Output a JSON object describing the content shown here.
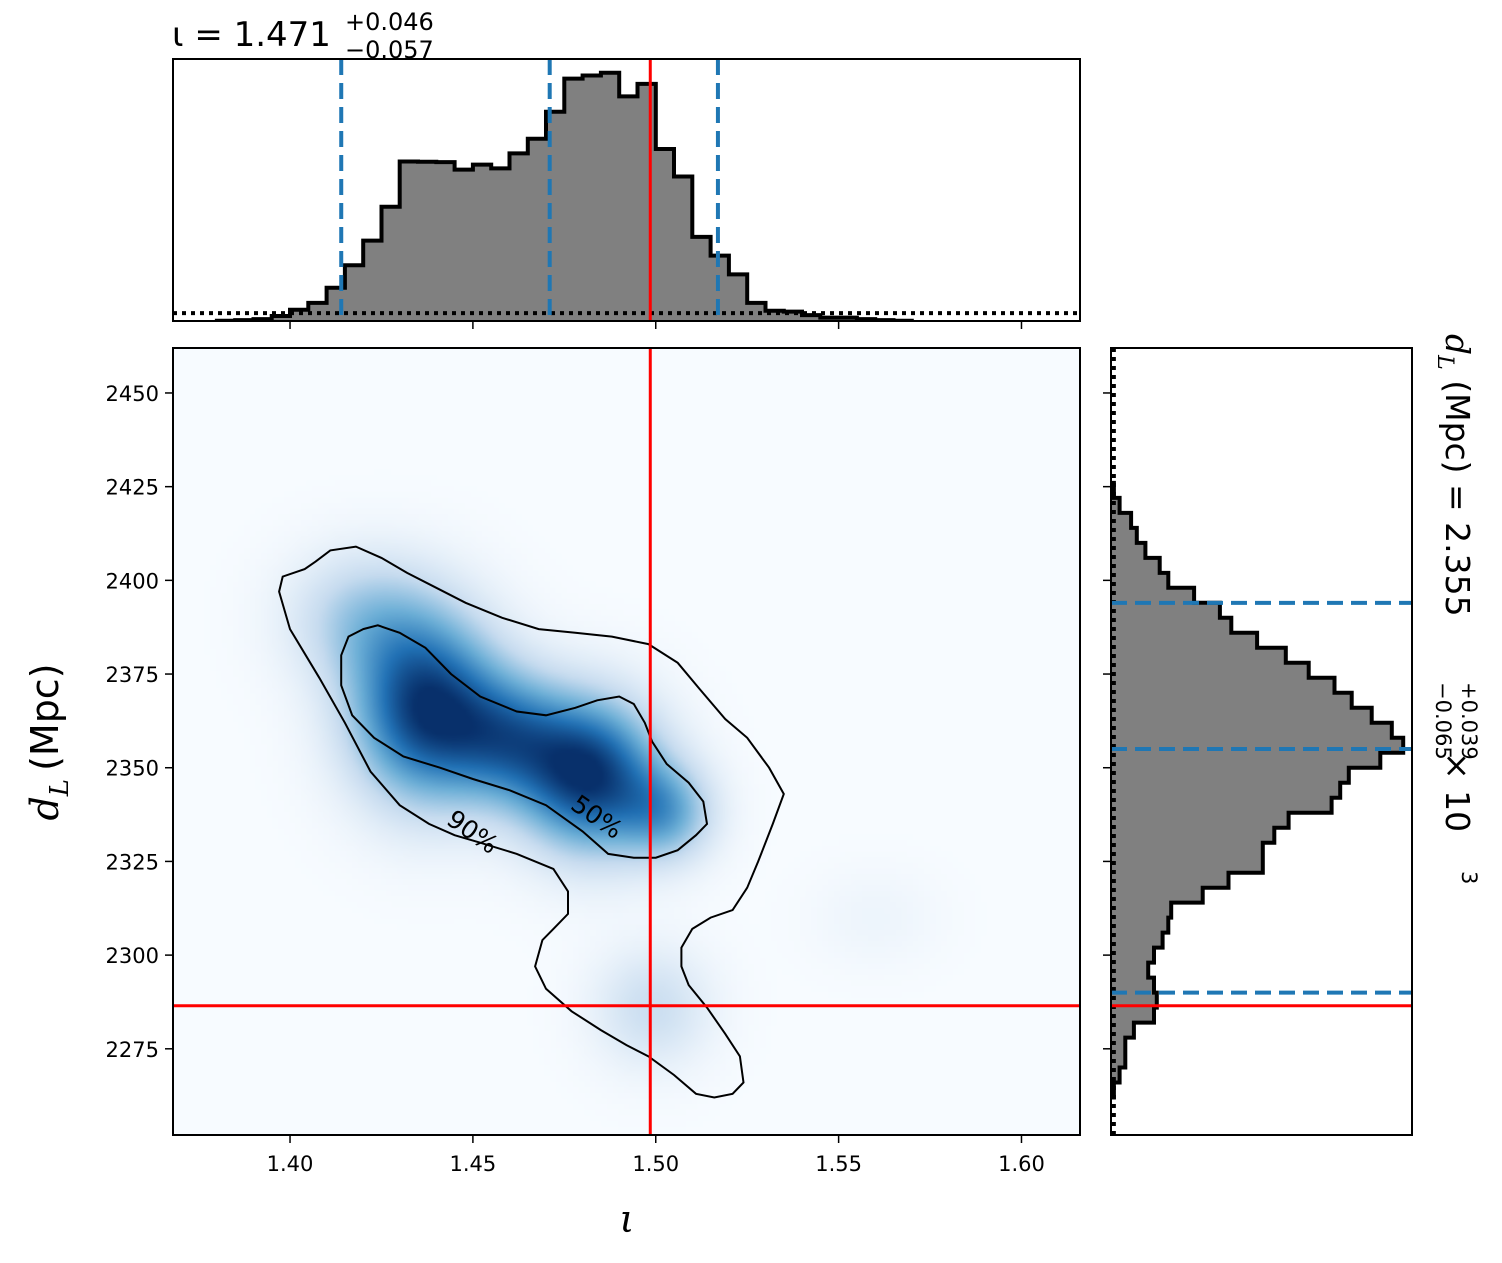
{
  "chart_data": {
    "type": "corner",
    "parameters": {
      "x": {
        "symbol": "ι",
        "label": "ι",
        "range": [
          1.368,
          1.616
        ],
        "ticks": [
          1.4,
          1.45,
          1.5,
          1.55,
          1.6
        ],
        "tick_labels": [
          "1.40",
          "1.45",
          "1.50",
          "1.55",
          "1.60"
        ],
        "injection": 1.4985
      },
      "y": {
        "label_main": "d",
        "label_sub": "L",
        "label_unit": "(Mpc)",
        "range": [
          2252,
          2462
        ],
        "ticks": [
          2275,
          2300,
          2325,
          2350,
          2375,
          2400,
          2425,
          2450
        ],
        "tick_labels": [
          "2275",
          "2300",
          "2325",
          "2350",
          "2375",
          "2400",
          "2425",
          "2450"
        ],
        "injection": 2286.5
      }
    },
    "top_title": {
      "prefix": "ι = 1.471",
      "sup": "+0.046",
      "sub": "−0.057"
    },
    "right_title": {
      "prefix": "d",
      "prefix_sub": "L",
      "middle": " (Mpc) = 2.355",
      "sup": "+0.039",
      "sub": "−0.065",
      "suffix": " × 10",
      "exp": "3"
    },
    "x_marginal": {
      "quantiles": [
        1.414,
        1.471,
        1.517
      ],
      "bin_edges": [
        1.38,
        1.385,
        1.39,
        1.395,
        1.4,
        1.405,
        1.41,
        1.415,
        1.42,
        1.425,
        1.43,
        1.435,
        1.44,
        1.445,
        1.45,
        1.455,
        1.46,
        1.465,
        1.47,
        1.475,
        1.48,
        1.485,
        1.49,
        1.495,
        1.5,
        1.505,
        1.51,
        1.515,
        1.52,
        1.525,
        1.53,
        1.535,
        1.54,
        1.545,
        1.55,
        1.555,
        1.56,
        1.565,
        1.57
      ],
      "density": [
        0.1,
        0.3,
        0.6,
        1.6,
        3.6,
        5.8,
        10.6,
        17.8,
        25.7,
        36.5,
        51.0,
        50.9,
        50.8,
        48.4,
        50.0,
        48.8,
        53.6,
        58.3,
        66.9,
        77.5,
        78.5,
        79.4,
        71.8,
        75.8,
        55.0,
        46.2,
        26.9,
        20.9,
        14.9,
        5.8,
        3.3,
        3.0,
        1.9,
        1.1,
        1.1,
        0.6,
        0.3,
        0.1
      ],
      "prior_level": 2.5
    },
    "y_marginal": {
      "quantiles": [
        2290,
        2355,
        2394
      ],
      "bin_edges": [
        2262,
        2266,
        2270,
        2274,
        2278,
        2282,
        2286,
        2290,
        2294,
        2298,
        2302,
        2306,
        2310,
        2314,
        2318,
        2322,
        2326,
        2330,
        2334,
        2338,
        2342,
        2346,
        2350,
        2354,
        2358,
        2362,
        2366,
        2370,
        2374,
        2378,
        2382,
        2386,
        2390,
        2394,
        2398,
        2402,
        2406,
        2410,
        2414,
        2418,
        2422,
        2426
      ],
      "density": [
        1,
        3,
        5,
        5,
        8,
        15,
        16,
        15,
        13,
        15,
        18,
        20,
        21,
        32,
        41,
        53,
        53,
        57,
        62,
        77,
        80,
        83,
        94,
        102,
        98,
        91,
        84,
        78,
        69,
        61,
        51,
        42,
        38,
        29,
        20,
        17,
        12,
        9,
        7,
        3,
        1
      ],
      "prior_level": 1
    },
    "contours": [
      {
        "label": "90%",
        "label_at": [
          1.45,
          2333
        ],
        "label_angle": 35,
        "points": [
          [
            1.407,
            2405
          ],
          [
            1.404,
            2403
          ],
          [
            1.398,
            2401
          ],
          [
            1.397,
            2397
          ],
          [
            1.4,
            2387
          ],
          [
            1.408,
            2374
          ],
          [
            1.415,
            2362
          ],
          [
            1.422,
            2349
          ],
          [
            1.43,
            2340
          ],
          [
            1.438,
            2335
          ],
          [
            1.445,
            2332
          ],
          [
            1.452,
            2330
          ],
          [
            1.462,
            2327
          ],
          [
            1.472,
            2323
          ],
          [
            1.476,
            2317
          ],
          [
            1.476,
            2311
          ],
          [
            1.472,
            2307
          ],
          [
            1.469,
            2304
          ],
          [
            1.467,
            2297
          ],
          [
            1.47,
            2291
          ],
          [
            1.477,
            2285
          ],
          [
            1.485,
            2280
          ],
          [
            1.492,
            2276
          ],
          [
            1.498,
            2273
          ],
          [
            1.505,
            2268
          ],
          [
            1.511,
            2263
          ],
          [
            1.516,
            2262
          ],
          [
            1.521,
            2263
          ],
          [
            1.524,
            2266
          ],
          [
            1.523,
            2273
          ],
          [
            1.519,
            2279
          ],
          [
            1.514,
            2286
          ],
          [
            1.509,
            2292
          ],
          [
            1.507,
            2297
          ],
          [
            1.507,
            2302
          ],
          [
            1.51,
            2307
          ],
          [
            1.515,
            2310
          ],
          [
            1.521,
            2312
          ],
          [
            1.525,
            2318
          ],
          [
            1.528,
            2325
          ],
          [
            1.532,
            2335
          ],
          [
            1.535,
            2343
          ],
          [
            1.531,
            2350
          ],
          [
            1.525,
            2358
          ],
          [
            1.519,
            2363
          ],
          [
            1.512,
            2371
          ],
          [
            1.506,
            2378
          ],
          [
            1.498,
            2383
          ],
          [
            1.488,
            2385
          ],
          [
            1.478,
            2386
          ],
          [
            1.468,
            2387
          ],
          [
            1.458,
            2390
          ],
          [
            1.448,
            2394
          ],
          [
            1.44,
            2398
          ],
          [
            1.432,
            2402
          ],
          [
            1.425,
            2406
          ],
          [
            1.418,
            2409
          ],
          [
            1.411,
            2408
          ],
          [
            1.407,
            2405
          ]
        ]
      },
      {
        "label": "50%",
        "label_at": [
          1.484,
          2337
        ],
        "label_angle": 35,
        "points": [
          [
            1.42,
            2387
          ],
          [
            1.416,
            2385
          ],
          [
            1.414,
            2380
          ],
          [
            1.414,
            2372
          ],
          [
            1.417,
            2364
          ],
          [
            1.423,
            2358
          ],
          [
            1.431,
            2353
          ],
          [
            1.441,
            2350
          ],
          [
            1.45,
            2347
          ],
          [
            1.46,
            2344
          ],
          [
            1.47,
            2340
          ],
          [
            1.48,
            2333
          ],
          [
            1.487,
            2327
          ],
          [
            1.494,
            2326
          ],
          [
            1.5,
            2326
          ],
          [
            1.506,
            2328
          ],
          [
            1.511,
            2332
          ],
          [
            1.514,
            2335
          ],
          [
            1.513,
            2341
          ],
          [
            1.509,
            2346
          ],
          [
            1.503,
            2351
          ],
          [
            1.499,
            2357
          ],
          [
            1.497,
            2362
          ],
          [
            1.494,
            2367
          ],
          [
            1.49,
            2369
          ],
          [
            1.484,
            2368
          ],
          [
            1.478,
            2366
          ],
          [
            1.47,
            2364
          ],
          [
            1.462,
            2365
          ],
          [
            1.452,
            2369
          ],
          [
            1.444,
            2375
          ],
          [
            1.437,
            2382
          ],
          [
            1.43,
            2386
          ],
          [
            1.424,
            2388
          ],
          [
            1.42,
            2387
          ]
        ]
      }
    ],
    "density_blobs": [
      {
        "x": 1.437,
        "y": 2366,
        "sx": 0.014,
        "sy": 17,
        "amp": 0.95
      },
      {
        "x": 1.482,
        "y": 2348,
        "sx": 0.013,
        "sy": 14,
        "amp": 0.95
      },
      {
        "x": 1.46,
        "y": 2358,
        "sx": 0.012,
        "sy": 12,
        "amp": 0.55
      },
      {
        "x": 1.503,
        "y": 2338,
        "sx": 0.009,
        "sy": 9,
        "amp": 0.45
      },
      {
        "x": 1.499,
        "y": 2286,
        "sx": 0.011,
        "sy": 11,
        "amp": 0.22
      },
      {
        "x": 1.42,
        "y": 2390,
        "sx": 0.014,
        "sy": 12,
        "amp": 0.3
      },
      {
        "x": 1.56,
        "y": 2310,
        "sx": 0.012,
        "sy": 9,
        "amp": 0.05
      }
    ],
    "colors": {
      "hist_fill": "#808080",
      "hist_edge": "#000000",
      "quantile": "#1f77b4",
      "injection": "#ff0000",
      "density_low": "#f7fbff",
      "density_high": "#08306b"
    }
  }
}
